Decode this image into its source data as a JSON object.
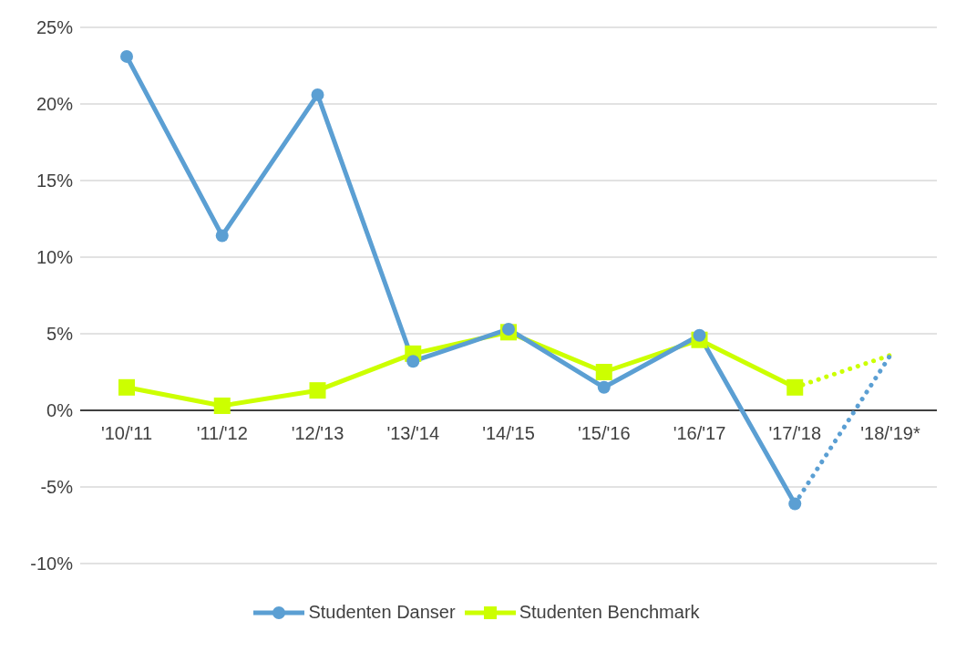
{
  "chart_data": {
    "type": "line",
    "categories": [
      "'10/'11",
      "'11/'12",
      "'12/'13",
      "'13/'14",
      "'14/'15",
      "'15/'16",
      "'16/'17",
      "'17/'18",
      "'18/'19*"
    ],
    "series": [
      {
        "name": "Studenten Danser",
        "color": "#5b9fd3",
        "marker": "circle",
        "values": [
          23.1,
          11.4,
          20.6,
          3.2,
          5.3,
          1.5,
          4.9,
          -6.1,
          null
        ]
      },
      {
        "name": "Studenten Benchmark",
        "color": "#ccff00",
        "marker": "square",
        "values": [
          1.5,
          0.3,
          1.3,
          3.7,
          5.1,
          2.5,
          4.6,
          1.5,
          null
        ]
      },
      {
        "color": "#5b9fd3",
        "marker": "none",
        "line_style": "dotted",
        "values": [
          null,
          null,
          null,
          null,
          null,
          null,
          null,
          -6.1,
          3.6
        ]
      },
      {
        "color": "#ccff00",
        "marker": "none",
        "line_style": "dotted",
        "values": [
          null,
          null,
          null,
          null,
          null,
          null,
          null,
          1.5,
          3.6
        ]
      }
    ],
    "ylim": [
      -10,
      25
    ],
    "yticks": [
      {
        "value": -10,
        "label": "-10%"
      },
      {
        "value": -5,
        "label": "-5%"
      },
      {
        "value": 0,
        "label": "0%"
      },
      {
        "value": 5,
        "label": "5%"
      },
      {
        "value": 10,
        "label": "10%"
      },
      {
        "value": 15,
        "label": "15%"
      },
      {
        "value": 20,
        "label": "20%"
      },
      {
        "value": 25,
        "label": "25%"
      }
    ],
    "grid": "y",
    "legend": "bottom"
  }
}
